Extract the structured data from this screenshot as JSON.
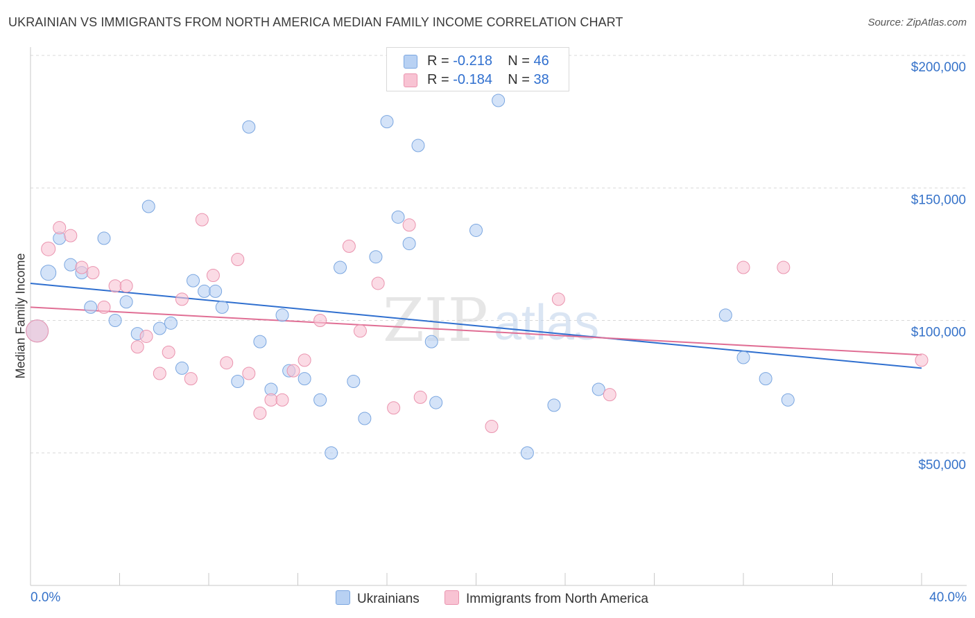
{
  "header": {
    "title": "UKRAINIAN VS IMMIGRANTS FROM NORTH AMERICA MEDIAN FAMILY INCOME CORRELATION CHART",
    "source": "Source: ZipAtlas.com"
  },
  "legend": {
    "rows": [
      {
        "r_label": "R =",
        "r_value": "-0.218",
        "n_label": "N =",
        "n_value": "46"
      },
      {
        "r_label": "R =",
        "r_value": "-0.184",
        "n_label": "N =",
        "n_value": "38"
      }
    ]
  },
  "colors": {
    "series_a_fill": "#b8d1f3",
    "series_a_stroke": "#7aa6e0",
    "series_a_line": "#2f6fcf",
    "series_b_fill": "#f8c3d3",
    "series_b_stroke": "#ea93ae",
    "series_b_line": "#e06e94",
    "tick_label": "#3572c9",
    "grid": "#d8d8d8"
  },
  "watermark": {
    "zip": "ZIP",
    "atlas": "atlas"
  },
  "chart_data": {
    "type": "scatter",
    "xlabel": "",
    "ylabel": "Median Family Income",
    "xlim": [
      0,
      40
    ],
    "ylim": [
      0,
      210000
    ],
    "x_tick_labels": [
      "0.0%",
      "40.0%"
    ],
    "y_ticks": [
      50000,
      100000,
      150000,
      200000
    ],
    "y_tick_labels": [
      "$50,000",
      "$100,000",
      "$150,000",
      "$200,000"
    ],
    "grid": true,
    "legend_position": "top-center",
    "series": [
      {
        "name": "Ukrainians",
        "points": [
          [
            0.3,
            96000,
            16
          ],
          [
            0.8,
            118000,
            11
          ],
          [
            1.3,
            131000,
            9
          ],
          [
            1.8,
            121000,
            9
          ],
          [
            2.3,
            118000,
            9
          ],
          [
            2.7,
            105000,
            9
          ],
          [
            3.3,
            131000,
            9
          ],
          [
            3.8,
            100000,
            9
          ],
          [
            4.3,
            107000,
            9
          ],
          [
            4.8,
            95000,
            9
          ],
          [
            5.3,
            143000,
            9
          ],
          [
            5.8,
            97000,
            9
          ],
          [
            6.3,
            99000,
            9
          ],
          [
            6.8,
            82000,
            9
          ],
          [
            7.3,
            115000,
            9
          ],
          [
            7.8,
            111000,
            9
          ],
          [
            8.3,
            111000,
            9
          ],
          [
            8.6,
            105000,
            9
          ],
          [
            9.3,
            77000,
            9
          ],
          [
            9.8,
            173000,
            9
          ],
          [
            10.3,
            92000,
            9
          ],
          [
            10.8,
            74000,
            9
          ],
          [
            11.3,
            102000,
            9
          ],
          [
            11.6,
            81000,
            9
          ],
          [
            12.3,
            78000,
            9
          ],
          [
            13.0,
            70000,
            9
          ],
          [
            13.5,
            50000,
            9
          ],
          [
            13.9,
            120000,
            9
          ],
          [
            14.5,
            77000,
            9
          ],
          [
            15.0,
            63000,
            9
          ],
          [
            15.5,
            124000,
            9
          ],
          [
            16.0,
            175000,
            9
          ],
          [
            16.5,
            139000,
            9
          ],
          [
            17.0,
            129000,
            9
          ],
          [
            17.4,
            166000,
            9
          ],
          [
            18.0,
            92000,
            9
          ],
          [
            18.2,
            69000,
            9
          ],
          [
            20.0,
            134000,
            9
          ],
          [
            21.0,
            183000,
            9
          ],
          [
            22.3,
            50000,
            9
          ],
          [
            23.5,
            68000,
            9
          ],
          [
            25.5,
            74000,
            9
          ],
          [
            31.2,
            102000,
            9
          ],
          [
            32.0,
            86000,
            9
          ],
          [
            33.0,
            78000,
            9
          ],
          [
            34.0,
            70000,
            9
          ]
        ]
      },
      {
        "name": "Immigrants from North America",
        "points": [
          [
            0.3,
            96000,
            16
          ],
          [
            0.8,
            127000,
            10
          ],
          [
            1.3,
            135000,
            9
          ],
          [
            1.8,
            132000,
            9
          ],
          [
            2.3,
            120000,
            9
          ],
          [
            2.8,
            118000,
            9
          ],
          [
            3.3,
            105000,
            9
          ],
          [
            3.8,
            113000,
            9
          ],
          [
            4.3,
            113000,
            9
          ],
          [
            4.8,
            90000,
            9
          ],
          [
            5.2,
            94000,
            9
          ],
          [
            5.8,
            80000,
            9
          ],
          [
            6.2,
            88000,
            9
          ],
          [
            6.8,
            108000,
            9
          ],
          [
            7.2,
            78000,
            9
          ],
          [
            7.7,
            138000,
            9
          ],
          [
            8.2,
            117000,
            9
          ],
          [
            8.8,
            84000,
            9
          ],
          [
            9.3,
            123000,
            9
          ],
          [
            9.8,
            80000,
            9
          ],
          [
            10.3,
            65000,
            9
          ],
          [
            10.8,
            70000,
            9
          ],
          [
            11.3,
            70000,
            9
          ],
          [
            11.8,
            81000,
            9
          ],
          [
            12.3,
            85000,
            9
          ],
          [
            13.0,
            100000,
            9
          ],
          [
            14.3,
            128000,
            9
          ],
          [
            14.8,
            96000,
            9
          ],
          [
            15.6,
            114000,
            9
          ],
          [
            16.3,
            67000,
            9
          ],
          [
            17.0,
            136000,
            9
          ],
          [
            17.5,
            71000,
            9
          ],
          [
            20.7,
            60000,
            9
          ],
          [
            23.7,
            108000,
            9
          ],
          [
            26.0,
            72000,
            9
          ],
          [
            32.0,
            120000,
            9
          ],
          [
            33.8,
            120000,
            9
          ],
          [
            40.0,
            85000,
            9
          ]
        ]
      }
    ],
    "trend_lines": [
      {
        "series": "Ukrainians",
        "start": [
          0,
          114000
        ],
        "end": [
          40,
          82000
        ]
      },
      {
        "series": "Immigrants from North America",
        "start": [
          0,
          105000
        ],
        "end": [
          40,
          87000
        ]
      }
    ]
  }
}
